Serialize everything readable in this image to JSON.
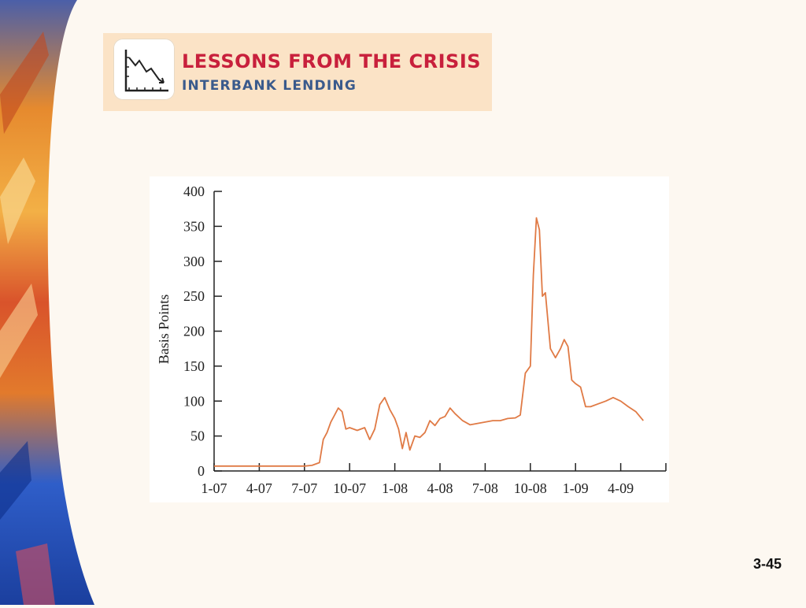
{
  "banner": {
    "title": "LESSONS FROM THE CRISIS",
    "subtitle": "INTERBANK LENDING",
    "icon": "declining-chart-icon"
  },
  "slide_number": "3-45",
  "colors": {
    "background": "#fdf8f1",
    "banner_bg": "#fbe3c6",
    "title": "#c8203c",
    "subtitle": "#3a5a8c",
    "series": "#e07a45"
  },
  "chart_data": {
    "type": "line",
    "title": "",
    "xlabel": "",
    "ylabel": "Basis Points",
    "ylim": [
      0,
      400
    ],
    "yticks": [
      0,
      50,
      100,
      150,
      200,
      250,
      300,
      350,
      400
    ],
    "xticks": [
      "1-07",
      "4-07",
      "7-07",
      "10-07",
      "1-08",
      "4-08",
      "7-08",
      "10-08",
      "1-09",
      "4-09"
    ],
    "grid": false,
    "legend": "none",
    "series": [
      {
        "color": "#e07a45",
        "points": [
          [
            "1-07",
            7
          ],
          [
            "2-07",
            7
          ],
          [
            "3-07",
            7
          ],
          [
            "4-07",
            7
          ],
          [
            "5-07",
            7
          ],
          [
            "6-07",
            7
          ],
          [
            "7-07",
            7
          ],
          [
            "7-07",
            8
          ],
          [
            "8-07",
            12
          ],
          [
            "8-07",
            45
          ],
          [
            "8-07",
            55
          ],
          [
            "8-07",
            70
          ],
          [
            "9-07",
            80
          ],
          [
            "9-07",
            90
          ],
          [
            "9-07",
            85
          ],
          [
            "9-07",
            60
          ],
          [
            "10-07",
            62
          ],
          [
            "10-07",
            58
          ],
          [
            "11-07",
            62
          ],
          [
            "11-07",
            45
          ],
          [
            "11-07",
            60
          ],
          [
            "12-07",
            95
          ],
          [
            "12-07",
            105
          ],
          [
            "12-07",
            88
          ],
          [
            "1-08",
            75
          ],
          [
            "1-08",
            60
          ],
          [
            "1-08",
            32
          ],
          [
            "1-08",
            55
          ],
          [
            "2-08",
            30
          ],
          [
            "2-08",
            50
          ],
          [
            "2-08",
            48
          ],
          [
            "3-08",
            55
          ],
          [
            "3-08",
            72
          ],
          [
            "3-08",
            65
          ],
          [
            "4-08",
            75
          ],
          [
            "4-08",
            78
          ],
          [
            "4-08",
            90
          ],
          [
            "5-08",
            82
          ],
          [
            "5-08",
            72
          ],
          [
            "6-08",
            66
          ],
          [
            "6-08",
            68
          ],
          [
            "7-08",
            70
          ],
          [
            "7-08",
            72
          ],
          [
            "8-08",
            72
          ],
          [
            "8-08",
            75
          ],
          [
            "9-08",
            76
          ],
          [
            "9-08",
            80
          ],
          [
            "9-08",
            140
          ],
          [
            "10-08",
            150
          ],
          [
            "10-08",
            280
          ],
          [
            "10-08",
            362
          ],
          [
            "10-08",
            345
          ],
          [
            "10-08",
            250
          ],
          [
            "11-08",
            255
          ],
          [
            "11-08",
            175
          ],
          [
            "11-08",
            162
          ],
          [
            "12-08",
            175
          ],
          [
            "12-08",
            188
          ],
          [
            "12-08",
            178
          ],
          [
            "12-08",
            130
          ],
          [
            "1-09",
            125
          ],
          [
            "1-09",
            120
          ],
          [
            "1-09",
            92
          ],
          [
            "2-09",
            92
          ],
          [
            "2-09",
            96
          ],
          [
            "3-09",
            100
          ],
          [
            "3-09",
            105
          ],
          [
            "4-09",
            100
          ],
          [
            "4-09",
            92
          ],
          [
            "5-09",
            85
          ],
          [
            "5-09",
            72
          ]
        ]
      }
    ]
  }
}
